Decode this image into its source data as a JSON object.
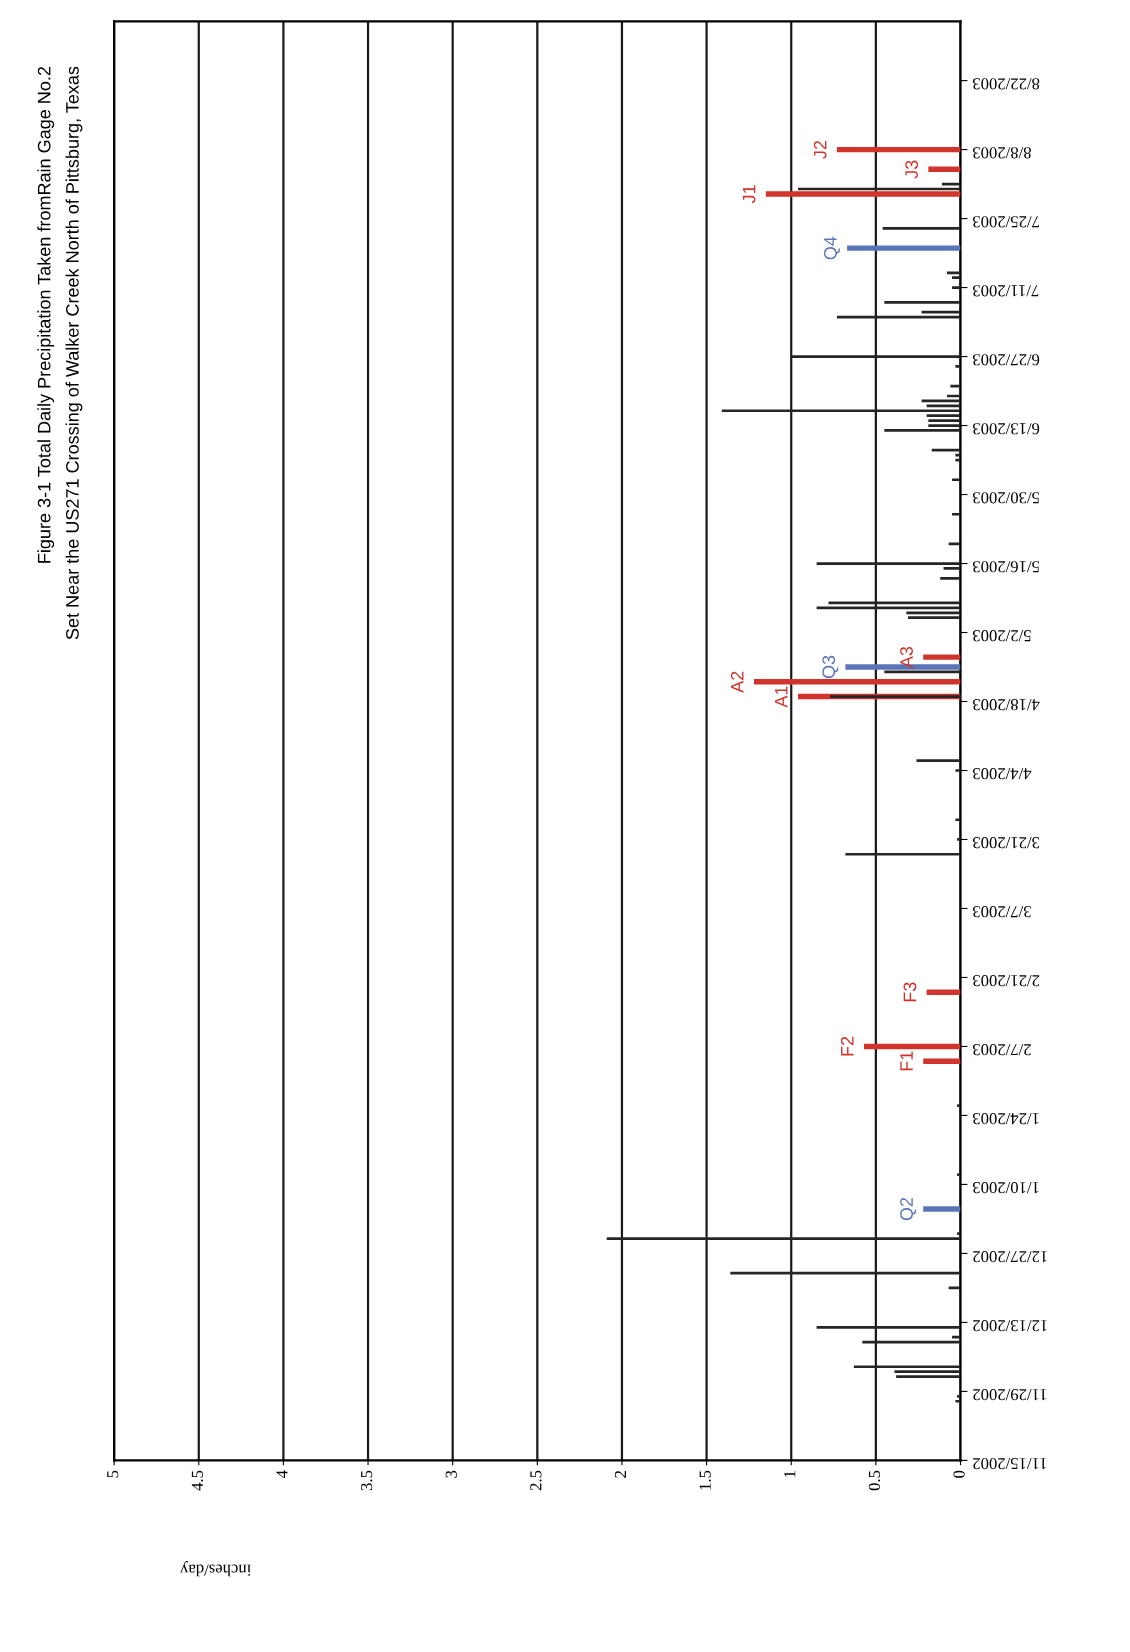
{
  "chart_data": {
    "type": "bar",
    "orientation": "horizontal",
    "title": "Figure 3-1 Total Daily Precipitation Taken fromRain Gage No.2",
    "subtitle": "Set Near the US271 Crossing of Walker Creek North of Pittsburg, Texas",
    "xlabel": "inches/day",
    "series": [
      {
        "color": "#262626",
        "x": [
          "2002-11-27",
          "2002-11-28",
          "2002-12-02",
          "2002-12-03",
          "2002-12-04",
          "2002-12-09",
          "2002-12-10",
          "2002-12-12",
          "2002-12-20",
          "2002-12-23",
          "2002-12-30",
          "2002-12-31",
          "2003-01-12",
          "2003-01-26",
          "2003-03-18",
          "2003-03-21",
          "2003-03-25",
          "2003-04-04",
          "2003-04-06",
          "2003-04-19",
          "2003-04-24",
          "2003-05-05",
          "2003-05-06",
          "2003-05-07",
          "2003-05-08",
          "2003-05-13",
          "2003-05-15",
          "2003-05-16",
          "2003-05-20",
          "2003-05-26",
          "2003-06-02",
          "2003-06-06",
          "2003-06-07",
          "2003-06-08",
          "2003-06-12",
          "2003-06-13",
          "2003-06-14",
          "2003-06-15",
          "2003-06-16",
          "2003-06-17",
          "2003-06-18",
          "2003-06-19",
          "2003-06-21",
          "2003-06-25",
          "2003-06-27",
          "2003-07-05",
          "2003-07-06",
          "2003-07-08",
          "2003-07-11",
          "2003-07-13",
          "2003-07-14",
          "2003-07-23",
          "2003-07-31",
          "2003-08-01"
        ],
        "values": [
          0.03,
          0.02,
          0.38,
          0.39,
          0.63,
          0.58,
          0.05,
          0.85,
          0.07,
          1.36,
          2.09,
          0.02,
          0.02,
          0.02,
          0.68,
          0.02,
          0.03,
          0.03,
          0.26,
          0.77,
          0.45,
          0.31,
          0.32,
          0.85,
          0.78,
          0.12,
          0.1,
          0.85,
          0.07,
          0.05,
          0.05,
          0.03,
          0.03,
          0.17,
          0.45,
          0.19,
          0.19,
          0.2,
          1.41,
          0.2,
          0.23,
          0.08,
          0.06,
          0.03,
          1.0,
          0.73,
          0.23,
          0.45,
          0.05,
          0.05,
          0.08,
          0.46,
          0.96,
          0.11
        ]
      },
      {
        "color": "#d0342c",
        "x": [
          "2003-02-04",
          "2003-02-07",
          "2003-02-18",
          "2003-04-19",
          "2003-04-22",
          "2003-04-27",
          "2003-07-30",
          "2003-08-04",
          "2003-08-08"
        ],
        "values": [
          0.22,
          0.57,
          0.2,
          0.96,
          1.22,
          0.22,
          1.15,
          0.19,
          0.73
        ],
        "value_labels": [
          "F1",
          "F2",
          "F3",
          "A1",
          "A2",
          "A3",
          "J1",
          "J3",
          "J2"
        ]
      },
      {
        "color": "#5b74b8",
        "x": [
          "2003-01-05",
          "2003-04-25",
          "2003-07-19"
        ],
        "values": [
          0.22,
          0.68,
          0.67
        ],
        "value_labels": [
          "Q2",
          "Q3",
          "Q4"
        ]
      }
    ],
    "xlim": [
      5,
      0
    ],
    "xticks": [
      0,
      0.5,
      1,
      1.5,
      2,
      2.5,
      3,
      3.5,
      4,
      4.5,
      5
    ],
    "ylim": [
      "2002-11-15",
      "2003-09-03"
    ],
    "yticks": [
      {
        "value": "2002-11-15",
        "label": "11/15/2002"
      },
      {
        "value": "2002-11-29",
        "label": "11/29/2002"
      },
      {
        "value": "2002-12-13",
        "label": "12/13/2002"
      },
      {
        "value": "2002-12-27",
        "label": "12/27/2002"
      },
      {
        "value": "2003-01-10",
        "label": "1/10/2003"
      },
      {
        "value": "2003-01-24",
        "label": "1/24/2003"
      },
      {
        "value": "2003-02-07",
        "label": "2/7/2003"
      },
      {
        "value": "2003-02-21",
        "label": "2/21/2003"
      },
      {
        "value": "2003-03-07",
        "label": "3/7/2003"
      },
      {
        "value": "2003-03-21",
        "label": "3/21/2003"
      },
      {
        "value": "2003-04-04",
        "label": "4/4/2003"
      },
      {
        "value": "2003-04-18",
        "label": "4/18/2003"
      },
      {
        "value": "2003-05-02",
        "label": "5/2/2003"
      },
      {
        "value": "2003-05-16",
        "label": "5/16/2003"
      },
      {
        "value": "2003-05-30",
        "label": "5/30/2003"
      },
      {
        "value": "2003-06-13",
        "label": "6/13/2003"
      },
      {
        "value": "2003-06-27",
        "label": "6/27/2003"
      },
      {
        "value": "2003-07-11",
        "label": "7/11/2003"
      },
      {
        "value": "2003-07-25",
        "label": "7/25/2003"
      },
      {
        "value": "2003-08-08",
        "label": "8/8/2003"
      },
      {
        "value": "2003-08-22",
        "label": "8/22/2003"
      }
    ],
    "grid": "x"
  }
}
